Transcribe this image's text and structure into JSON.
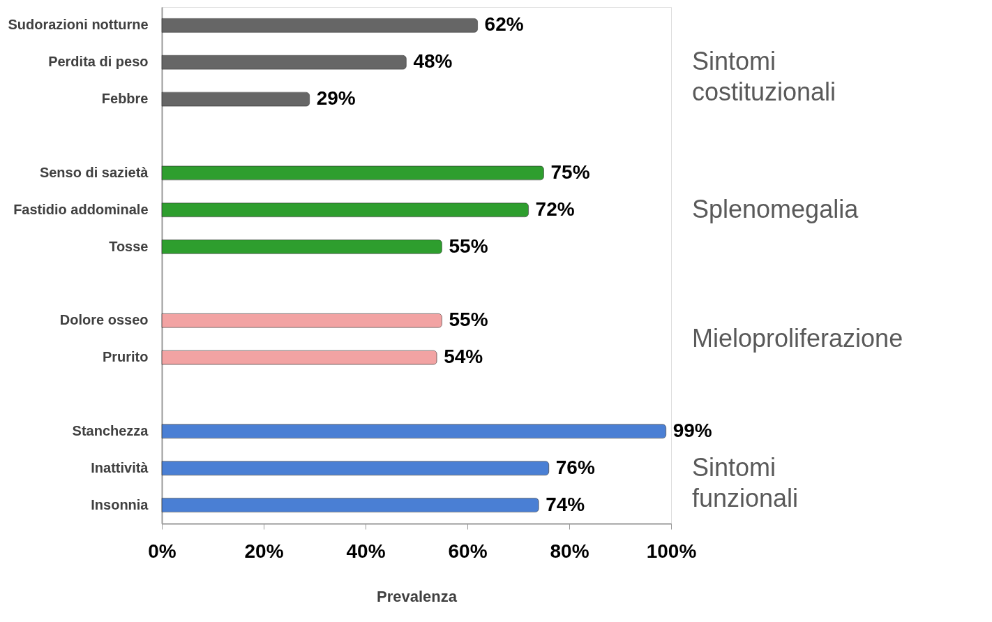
{
  "chart_data": {
    "type": "bar",
    "orientation": "horizontal",
    "xlabel": "Prevalenza",
    "categories": [
      "Sudorazioni notturne",
      "Perdita di peso",
      "Febbre",
      null,
      "Senso di sazietà",
      "Fastidio addominale",
      "Tosse",
      null,
      "Dolore osseo",
      "Prurito",
      null,
      "Stanchezza",
      "Inattività",
      "Insonnia"
    ],
    "values": [
      62,
      48,
      29,
      null,
      75,
      72,
      55,
      null,
      55,
      54,
      null,
      99,
      76,
      74
    ],
    "value_labels": [
      "62%",
      "48%",
      "29%",
      null,
      "75%",
      "72%",
      "55%",
      null,
      "55%",
      "54%",
      null,
      "99%",
      "76%",
      "74%"
    ],
    "colors": [
      "#666666",
      "#666666",
      "#666666",
      null,
      "#2e9e2e",
      "#2e9e2e",
      "#2e9e2e",
      null,
      "#f2a3a3",
      "#f2a3a3",
      null,
      "#4a7fd4",
      "#4a7fd4",
      "#4a7fd4"
    ],
    "xlim": [
      0,
      100
    ],
    "xticks": [
      {
        "value": 0,
        "label": "0%"
      },
      {
        "value": 20,
        "label": "20%"
      },
      {
        "value": 40,
        "label": "40%"
      },
      {
        "value": 60,
        "label": "60%"
      },
      {
        "value": 80,
        "label": "80%"
      },
      {
        "value": 100,
        "label": "100%"
      }
    ],
    "annotations": [
      "Sintomi\ncostituzionali",
      "Splenomegalia",
      "Mieloproliferazione",
      "Sintomi\nfunzionali"
    ],
    "grid": false
  }
}
